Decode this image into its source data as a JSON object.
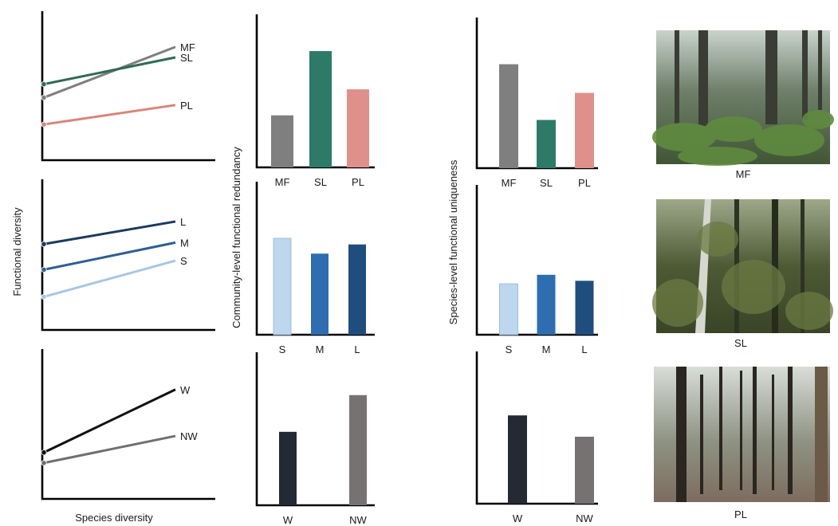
{
  "labels": {
    "functional_diversity": "Functional diversity",
    "species_diversity": "Species diversity",
    "community_redundancy": "Community-level functional redundancy",
    "species_uniqueness": "Species-level functional uniqueness"
  },
  "photos": [
    {
      "caption": "MF",
      "scene": "forest-ferns"
    },
    {
      "caption": "SL",
      "scene": "forest-dense-understory"
    },
    {
      "caption": "PL",
      "scene": "forest-plantation"
    }
  ],
  "chart_data": [
    {
      "type": "line",
      "panel": "diversity-forest-type",
      "x": [
        0,
        1
      ],
      "ylim": [
        0,
        1
      ],
      "series": [
        {
          "name": "MF",
          "values": [
            0.42,
            0.76
          ],
          "color": "#7f7f7f"
        },
        {
          "name": "SL",
          "values": [
            0.51,
            0.69
          ],
          "color": "#2e6b57"
        },
        {
          "name": "PL",
          "values": [
            0.24,
            0.37
          ],
          "color": "#d9857c"
        }
      ]
    },
    {
      "type": "line",
      "panel": "diversity-size",
      "x": [
        0,
        1
      ],
      "ylim": [
        0,
        1
      ],
      "series": [
        {
          "name": "L",
          "values": [
            0.57,
            0.72
          ],
          "color": "#1b3a5e"
        },
        {
          "name": "M",
          "values": [
            0.4,
            0.58
          ],
          "color": "#2f5f93"
        },
        {
          "name": "S",
          "values": [
            0.22,
            0.46
          ],
          "color": "#a9c6e2"
        }
      ]
    },
    {
      "type": "line",
      "panel": "diversity-wood",
      "x": [
        0,
        1
      ],
      "ylim": [
        0,
        1
      ],
      "series": [
        {
          "name": "W",
          "values": [
            0.31,
            0.73
          ],
          "color": "#111111"
        },
        {
          "name": "NW",
          "values": [
            0.24,
            0.42
          ],
          "color": "#6f6f6f"
        }
      ]
    },
    {
      "type": "bar",
      "panel": "redundancy-forest-type",
      "categories": [
        "MF",
        "SL",
        "PL"
      ],
      "values": [
        0.34,
        0.76,
        0.51
      ],
      "ylim": [
        0,
        1
      ],
      "colors": [
        "#7f7f7f",
        "#2e7a69",
        "#e0908a"
      ]
    },
    {
      "type": "bar",
      "panel": "redundancy-size",
      "categories": [
        "S",
        "M",
        "L"
      ],
      "values": [
        0.63,
        0.53,
        0.59
      ],
      "ylim": [
        0,
        1
      ],
      "colors": [
        "#bcd7ee",
        "#2e6db0",
        "#1f4e7e"
      ]
    },
    {
      "type": "bar",
      "panel": "redundancy-wood",
      "categories": [
        "W",
        "NW"
      ],
      "values": [
        0.48,
        0.72
      ],
      "ylim": [
        0,
        1
      ],
      "colors": [
        "#242a33",
        "#777272"
      ]
    },
    {
      "type": "bar",
      "panel": "uniqueness-forest-type",
      "categories": [
        "MF",
        "SL",
        "PL"
      ],
      "values": [
        0.69,
        0.32,
        0.5
      ],
      "ylim": [
        0,
        1
      ],
      "colors": [
        "#7f7f7f",
        "#2e7a69",
        "#e0908a"
      ]
    },
    {
      "type": "bar",
      "panel": "uniqueness-size",
      "categories": [
        "S",
        "M",
        "L"
      ],
      "values": [
        0.34,
        0.4,
        0.36
      ],
      "ylim": [
        0,
        1
      ],
      "colors": [
        "#bcd7ee",
        "#2e6db0",
        "#1f4e7e"
      ]
    },
    {
      "type": "bar",
      "panel": "uniqueness-wood",
      "categories": [
        "W",
        "NW"
      ],
      "values": [
        0.58,
        0.44
      ],
      "ylim": [
        0,
        1
      ],
      "colors": [
        "#242a33",
        "#777272"
      ]
    }
  ]
}
